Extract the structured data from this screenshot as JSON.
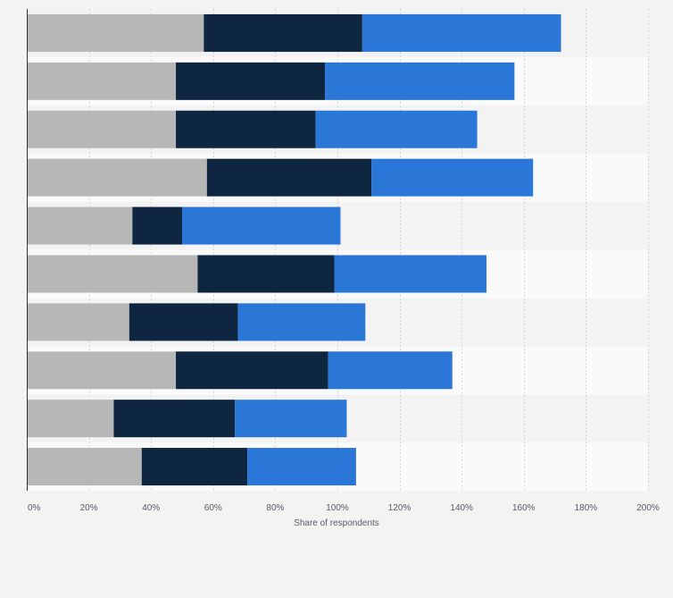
{
  "chart_data": {
    "type": "bar",
    "orientation": "horizontal",
    "stacked": true,
    "categories": [
      "",
      "",
      "",
      "",
      "",
      "",
      "",
      "",
      "",
      ""
    ],
    "series": [
      {
        "color": "#b7b7b7",
        "values": [
          57,
          48,
          48,
          58,
          34,
          55,
          33,
          48,
          28,
          37
        ]
      },
      {
        "color": "#0f2640",
        "values": [
          51,
          48,
          45,
          53,
          16,
          44,
          35,
          49,
          39,
          34
        ]
      },
      {
        "color": "#2a77d8",
        "values": [
          64,
          61,
          52,
          52,
          51,
          49,
          41,
          40,
          36,
          35
        ]
      }
    ],
    "xlabel": "Share of respondents",
    "ylabel": "",
    "xlim": [
      0,
      200
    ],
    "x_ticks": [
      "0%",
      "20%",
      "40%",
      "60%",
      "80%",
      "100%",
      "120%",
      "140%",
      "160%",
      "180%",
      "200%"
    ],
    "grid": true,
    "legend": "none"
  }
}
